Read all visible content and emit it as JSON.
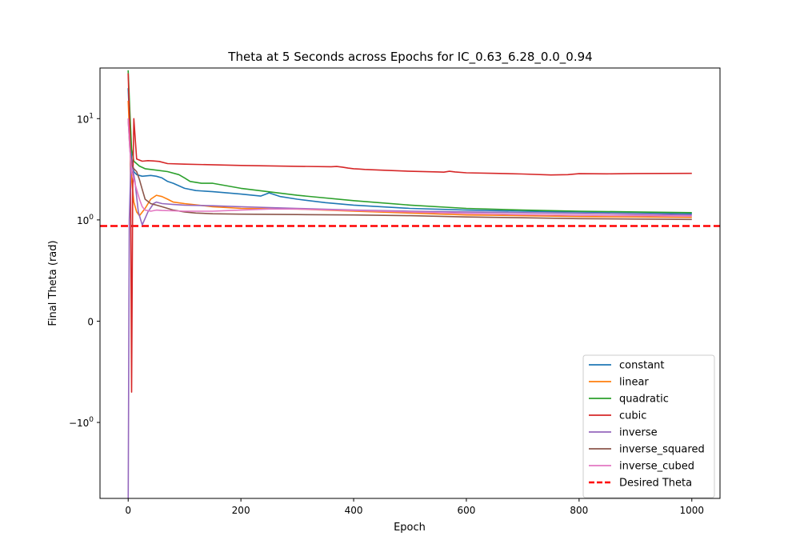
{
  "chart_data": {
    "type": "line",
    "title": "Theta at 5 Seconds across Epochs for IC_0.63_6.28_0.0_0.94",
    "xlabel": "Epoch",
    "ylabel": "Final Theta (rad)",
    "xlim": [
      -50,
      1050
    ],
    "xticks": [
      0,
      200,
      400,
      600,
      800,
      1000
    ],
    "yscale": "symlog",
    "yticks": [
      {
        "value": 10,
        "base": "10",
        "exp": "1"
      },
      {
        "value": 1,
        "base": "10",
        "exp": "0"
      },
      {
        "value": 0,
        "text": "0"
      },
      {
        "value": -1,
        "base": "−10",
        "exp": "0"
      }
    ],
    "grid": false,
    "legend_position": "lower-right",
    "desired": {
      "name": "Desired Theta",
      "value": 0.94,
      "color": "#ff0000"
    },
    "series": [
      {
        "name": "constant",
        "color": "#1f77b4",
        "x": [
          0,
          3,
          6,
          10,
          15,
          25,
          40,
          50,
          60,
          70,
          80,
          100,
          120,
          150,
          200,
          235,
          250,
          270,
          300,
          350,
          400,
          500,
          600,
          700,
          800,
          900,
          1000
        ],
        "y": [
          20,
          8,
          4,
          3.0,
          2.8,
          2.7,
          2.75,
          2.7,
          2.6,
          2.4,
          2.3,
          2.05,
          1.95,
          1.9,
          1.8,
          1.72,
          1.85,
          1.7,
          1.6,
          1.48,
          1.4,
          1.3,
          1.25,
          1.22,
          1.2,
          1.18,
          1.15
        ]
      },
      {
        "name": "linear",
        "color": "#ff7f0e",
        "x": [
          0,
          3,
          6,
          10,
          15,
          20,
          30,
          40,
          50,
          60,
          70,
          80,
          100,
          150,
          200,
          300,
          400,
          500,
          600,
          700,
          800,
          900,
          1000
        ],
        "y": [
          15,
          6,
          2.5,
          1.5,
          1.2,
          1.1,
          1.3,
          1.6,
          1.75,
          1.7,
          1.6,
          1.5,
          1.45,
          1.35,
          1.3,
          1.28,
          1.22,
          1.17,
          1.12,
          1.1,
          1.08,
          1.07,
          1.06
        ]
      },
      {
        "name": "quadratic",
        "color": "#2ca02c",
        "x": [
          0,
          3,
          6,
          10,
          20,
          30,
          50,
          70,
          90,
          100,
          110,
          130,
          150,
          200,
          300,
          400,
          500,
          600,
          700,
          800,
          900,
          1000
        ],
        "y": [
          30,
          12,
          5,
          3.8,
          3.4,
          3.2,
          3.1,
          3.0,
          2.8,
          2.6,
          2.4,
          2.3,
          2.3,
          2.05,
          1.75,
          1.55,
          1.4,
          1.3,
          1.25,
          1.22,
          1.2,
          1.18
        ]
      },
      {
        "name": "cubic",
        "color": "#d62728",
        "x": [
          0,
          2,
          4,
          6,
          8,
          10,
          15,
          25,
          35,
          45,
          55,
          70,
          100,
          200,
          300,
          360,
          370,
          380,
          390,
          400,
          410,
          420,
          450,
          500,
          550,
          560,
          570,
          580,
          600,
          650,
          700,
          750,
          780,
          800,
          850,
          900,
          1000
        ],
        "y": [
          28,
          12,
          5,
          -0.7,
          2,
          10,
          4.0,
          3.8,
          3.85,
          3.82,
          3.78,
          3.6,
          3.55,
          3.45,
          3.38,
          3.35,
          3.37,
          3.32,
          3.25,
          3.2,
          3.18,
          3.15,
          3.1,
          3.02,
          2.98,
          2.96,
          3.02,
          2.98,
          2.92,
          2.88,
          2.84,
          2.78,
          2.8,
          2.86,
          2.85,
          2.87,
          2.88
        ]
      },
      {
        "name": "inverse",
        "color": "#9467bd",
        "x": [
          0,
          2,
          5,
          8,
          12,
          18,
          25,
          35,
          45,
          50,
          60,
          80,
          100,
          150,
          200,
          300,
          400,
          500,
          600,
          700,
          800,
          900,
          1000
        ],
        "y": [
          -8,
          1,
          4,
          3.2,
          2.4,
          1.2,
          0.95,
          1.2,
          1.45,
          1.5,
          1.45,
          1.42,
          1.4,
          1.38,
          1.35,
          1.3,
          1.25,
          1.22,
          1.2,
          1.18,
          1.16,
          1.14,
          1.12
        ]
      },
      {
        "name": "inverse_squared",
        "color": "#8c564b",
        "x": [
          0,
          3,
          6,
          10,
          15,
          20,
          25,
          30,
          40,
          50,
          60,
          70,
          80,
          100,
          120,
          150,
          200,
          300,
          400,
          500,
          600,
          700,
          800,
          900,
          1000
        ],
        "y": [
          10,
          5,
          3.5,
          3.2,
          3.0,
          2.5,
          2.0,
          1.6,
          1.45,
          1.4,
          1.35,
          1.3,
          1.25,
          1.2,
          1.17,
          1.15,
          1.14,
          1.13,
          1.12,
          1.1,
          1.07,
          1.05,
          1.03,
          1.02,
          1.01
        ]
      },
      {
        "name": "inverse_cubed",
        "color": "#e377c2",
        "x": [
          0,
          3,
          6,
          10,
          15,
          20,
          25,
          30,
          40,
          50,
          60,
          80,
          100,
          150,
          200,
          250,
          300,
          400,
          500,
          600,
          700,
          800,
          900,
          1000
        ],
        "y": [
          10,
          5,
          3.0,
          2.5,
          2.0,
          1.6,
          1.35,
          1.25,
          1.22,
          1.25,
          1.24,
          1.23,
          1.22,
          1.22,
          1.25,
          1.28,
          1.28,
          1.24,
          1.2,
          1.16,
          1.13,
          1.11,
          1.1,
          1.09
        ]
      }
    ]
  }
}
